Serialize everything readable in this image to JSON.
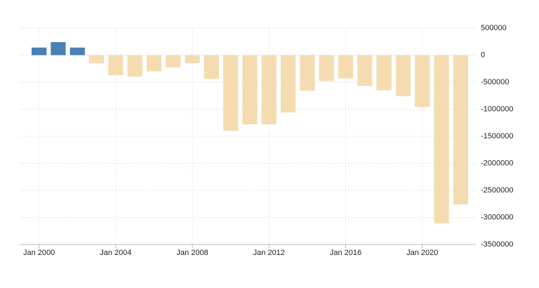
{
  "chart_data": {
    "type": "bar",
    "categories": [
      "Jan 2000",
      null,
      null,
      null,
      "Jan 2004",
      null,
      null,
      null,
      "Jan 2008",
      null,
      null,
      null,
      "Jan 2012",
      null,
      null,
      null,
      "Jan 2016",
      null,
      null,
      null,
      "Jan 2020",
      null,
      null
    ],
    "values": [
      140000,
      240000,
      140000,
      -150000,
      -370000,
      -400000,
      -300000,
      -230000,
      -150000,
      -440000,
      -1400000,
      -1280000,
      -1280000,
      -1060000,
      -660000,
      -480000,
      -430000,
      -570000,
      -650000,
      -760000,
      -960000,
      -3110000,
      -2760000
    ],
    "color_positive": "#4a80b3",
    "color_negative": "#f5dcb0",
    "ylim": [
      -3500000,
      500000
    ],
    "yticks": [
      500000,
      0,
      -500000,
      -1000000,
      -1500000,
      -2000000,
      -2500000,
      -3000000,
      -3500000
    ],
    "grid": true
  }
}
